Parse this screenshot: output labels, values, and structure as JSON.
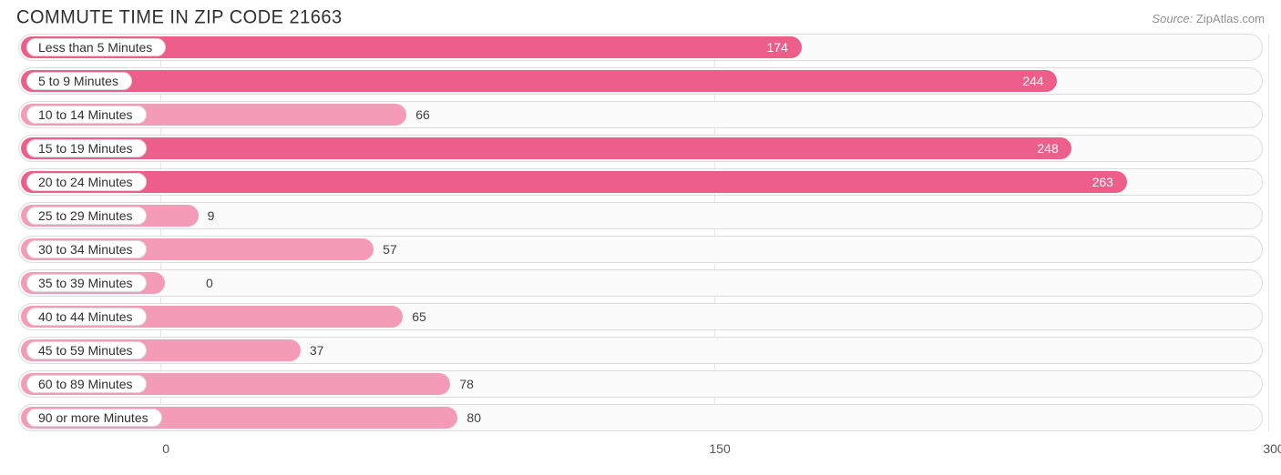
{
  "chart": {
    "type": "bar-horizontal",
    "title": "COMMUTE TIME IN ZIP CODE 21663",
    "source_label": "Source:",
    "source_value": "ZipAtlas.com",
    "background_color": "#ffffff",
    "row_bg": "#fbfbfb",
    "row_border": "#dcdcdc",
    "pill_bg": "#ffffff",
    "pill_border": "#d9d9d9",
    "grid_color": "#e6e6e6",
    "text_color": "#303030",
    "axis": {
      "min": -40,
      "max": 300,
      "ticks": [
        0,
        150,
        300
      ]
    },
    "label_origin": 195,
    "categories": [
      {
        "label": "Less than 5 Minutes",
        "value": 174,
        "fill": "#ed5e8a"
      },
      {
        "label": "5 to 9 Minutes",
        "value": 244,
        "fill": "#ed5e8a"
      },
      {
        "label": "10 to 14 Minutes",
        "value": 66,
        "fill": "#f49bb8"
      },
      {
        "label": "15 to 19 Minutes",
        "value": 248,
        "fill": "#ed5e8a"
      },
      {
        "label": "20 to 24 Minutes",
        "value": 263,
        "fill": "#ed5e8a"
      },
      {
        "label": "25 to 29 Minutes",
        "value": 9,
        "fill": "#f49bb8"
      },
      {
        "label": "30 to 34 Minutes",
        "value": 57,
        "fill": "#f49bb8"
      },
      {
        "label": "35 to 39 Minutes",
        "value": 0,
        "fill": "#f49bb8"
      },
      {
        "label": "40 to 44 Minutes",
        "value": 65,
        "fill": "#f49bb8"
      },
      {
        "label": "45 to 59 Minutes",
        "value": 37,
        "fill": "#f49bb8"
      },
      {
        "label": "60 to 89 Minutes",
        "value": 78,
        "fill": "#f49bb8"
      },
      {
        "label": "90 or more Minutes",
        "value": 80,
        "fill": "#f49bb8"
      }
    ]
  }
}
